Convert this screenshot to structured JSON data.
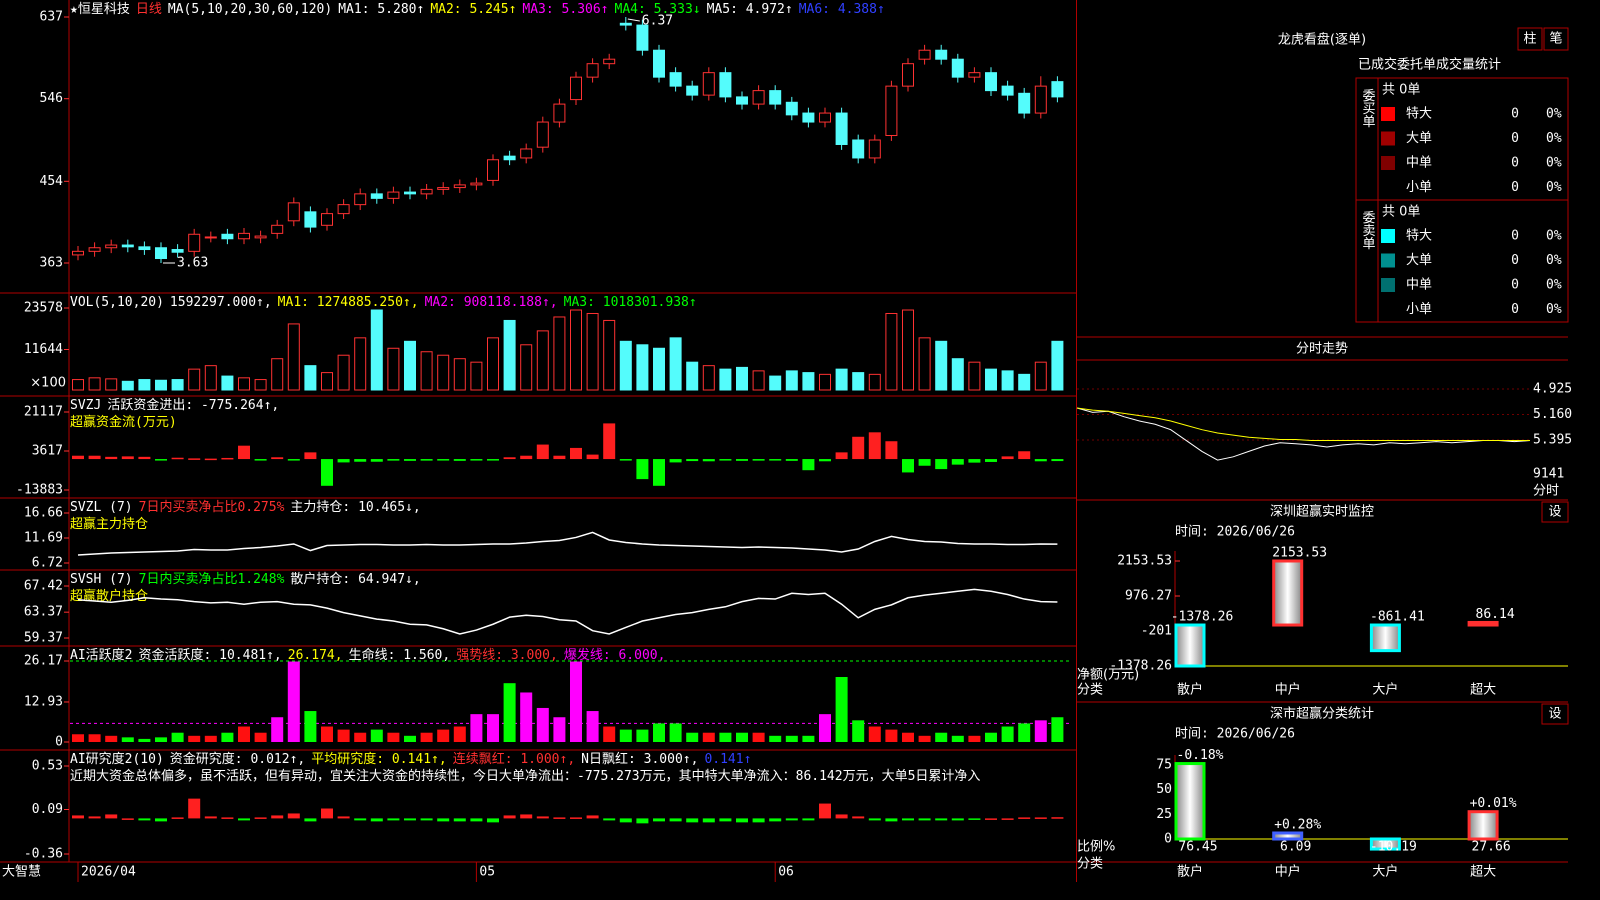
{
  "stock": {
    "header": [
      [
        {
          "text": "★恒星科技",
          "color": "#ffffff"
        },
        {
          "text": "日线",
          "color": "#ff3030"
        },
        {
          "text": "MA(5,10,20,30,60,120)",
          "color": "#ffffff"
        },
        {
          "text": "MA1: 5.280↑",
          "color": "#ffffff"
        },
        {
          "text": "MA2: 5.245↑",
          "color": "#ffff00"
        },
        {
          "text": "MA3: 5.306↑",
          "color": "#ff00ff"
        },
        {
          "text": "MA4: 5.333↓",
          "color": "#00ff00"
        },
        {
          "text": "MA5: 4.972↑",
          "color": "#ffffff"
        },
        {
          "text": "MA6: 4.388↑",
          "color": "#3040ff"
        }
      ]
    ],
    "brand": "大智慧"
  },
  "order_panel": {
    "title": "龙虎看盘(逐单)",
    "buttons": [
      "柱",
      "笔"
    ],
    "heading": "已成交委托单成交量统计",
    "groups": [
      {
        "label": "委买单",
        "total": "共 0单",
        "rows": [
          {
            "name": "特大",
            "count": 0,
            "pct": "0%",
            "color": "#ff0000"
          },
          {
            "name": "大单",
            "count": 0,
            "pct": "0%",
            "color": "#a00000"
          },
          {
            "name": "中单",
            "count": 0,
            "pct": "0%",
            "color": "#800000"
          },
          {
            "name": "小单",
            "count": 0,
            "pct": "0%"
          }
        ]
      },
      {
        "label": "委卖单",
        "total": "共 0单",
        "rows": [
          {
            "name": "特大",
            "count": 0,
            "pct": "0%",
            "color": "#00ffff"
          },
          {
            "name": "大单",
            "count": 0,
            "pct": "0%",
            "color": "#009090"
          },
          {
            "name": "中单",
            "count": 0,
            "pct": "0%",
            "color": "#007070"
          },
          {
            "name": "小单",
            "count": 0,
            "pct": "0%"
          }
        ]
      }
    ]
  },
  "chart_data": [
    {
      "type": "candlestick",
      "header": "stock",
      "up_color": "#ff3232",
      "down_color": "#54fcfc",
      "ylim": [
        363,
        637
      ],
      "yticks": [
        363,
        454,
        546,
        637
      ],
      "high_note": "6.37",
      "low_note": "3.63",
      "xticks": [
        {
          "value": 0,
          "label": "2026/04"
        },
        {
          "value": 24,
          "label": "05"
        },
        {
          "value": 42,
          "label": "06"
        }
      ],
      "open": [
        372,
        376,
        380,
        383,
        381,
        380,
        378,
        376,
        392,
        395,
        390,
        391,
        396,
        410,
        420,
        405,
        418,
        428,
        440,
        435,
        442,
        440,
        445,
        447,
        450,
        455,
        482,
        480,
        492,
        520,
        545,
        570,
        585,
        630,
        628,
        600,
        575,
        560,
        550,
        575,
        548,
        540,
        555,
        542,
        530,
        520,
        530,
        500,
        480,
        505,
        560,
        590,
        600,
        590,
        570,
        575,
        560,
        552,
        530,
        565
      ],
      "high": [
        382,
        386,
        389,
        389,
        387,
        386,
        384,
        401,
        398,
        401,
        402,
        399,
        411,
        436,
        426,
        424,
        434,
        446,
        446,
        448,
        448,
        451,
        453,
        456,
        458,
        484,
        488,
        496,
        526,
        546,
        576,
        591,
        596,
        637,
        634,
        606,
        581,
        566,
        581,
        581,
        554,
        561,
        561,
        548,
        536,
        536,
        536,
        506,
        506,
        566,
        591,
        606,
        606,
        596,
        581,
        581,
        566,
        558,
        571,
        571
      ],
      "low": [
        366,
        370,
        374,
        375,
        372,
        363,
        369,
        370,
        386,
        384,
        384,
        385,
        390,
        404,
        397,
        399,
        412,
        422,
        429,
        429,
        434,
        434,
        439,
        441,
        444,
        449,
        472,
        474,
        486,
        514,
        539,
        564,
        579,
        622,
        594,
        564,
        554,
        544,
        544,
        542,
        534,
        534,
        534,
        522,
        514,
        514,
        489,
        474,
        474,
        499,
        554,
        584,
        584,
        564,
        564,
        549,
        544,
        524,
        524,
        542
      ],
      "close": [
        376,
        380,
        383,
        381,
        378,
        368,
        375,
        395,
        392,
        390,
        396,
        393,
        405,
        430,
        403,
        418,
        428,
        440,
        435,
        442,
        440,
        445,
        447,
        450,
        452,
        478,
        478,
        490,
        520,
        540,
        570,
        585,
        590,
        628,
        600,
        570,
        560,
        550,
        575,
        548,
        540,
        555,
        540,
        528,
        520,
        530,
        495,
        480,
        500,
        560,
        585,
        600,
        590,
        570,
        575,
        555,
        550,
        530,
        560,
        548
      ]
    },
    {
      "type": "volume",
      "header": [
        [
          {
            "text": "VOL(5,10,20)",
            "color": "#ffffff"
          },
          {
            "text": "1592297.000↑,",
            "color": "#ffffff"
          },
          {
            "text": "MA1: 1274885.250↑,",
            "color": "#ffff00"
          },
          {
            "text": "MA2: 908118.188↑,",
            "color": "#ff00ff"
          },
          {
            "text": "MA3: 1018301.938↑",
            "color": "#00ff00"
          }
        ]
      ],
      "unit_label": "×100",
      "ylim": [
        0,
        23578
      ],
      "yticks": [
        11644,
        23578
      ],
      "values": [
        3000,
        3500,
        3200,
        2500,
        3000,
        2800,
        3000,
        6000,
        7000,
        4000,
        3500,
        3000,
        9000,
        19000,
        7000,
        5000,
        10000,
        15000,
        23000,
        12000,
        14000,
        11000,
        10000,
        9000,
        8000,
        15000,
        20000,
        13000,
        17000,
        21000,
        23000,
        22000,
        20000,
        14000,
        13000,
        12000,
        15000,
        8000,
        7000,
        6000,
        6500,
        5500,
        4000,
        5500,
        5000,
        4500,
        6000,
        5000,
        4500,
        22000,
        23000,
        15000,
        14000,
        9000,
        8000,
        6000,
        5500,
        4500,
        8000,
        14000
      ]
    },
    {
      "type": "bar",
      "header": [
        [
          {
            "text": "SVZJ",
            "color": "#ffffff"
          },
          {
            "text": "活跃资金进出: -775.264↑,",
            "color": "#ffffff"
          }
        ],
        [
          {
            "text": "超赢资金流(万元)",
            "color": "#ffff00"
          }
        ]
      ],
      "colors": {
        "pos": "#ff2020",
        "neg": "#00ff00"
      },
      "ylim": [
        -13883,
        21117
      ],
      "yticks": [
        -13883,
        3617,
        21117
      ],
      "values": [
        1500,
        1500,
        1000,
        1200,
        1000,
        -300,
        600,
        300,
        200,
        500,
        6000,
        -500,
        800,
        -600,
        3000,
        -12000,
        -1500,
        -1200,
        -1200,
        -700,
        -800,
        -700,
        -500,
        -800,
        -500,
        -600,
        800,
        1500,
        6500,
        1500,
        5000,
        2000,
        16000,
        -300,
        -9000,
        -12000,
        -1500,
        -900,
        -1000,
        -600,
        -800,
        -700,
        -300,
        -800,
        -5000,
        -1000,
        3000,
        10000,
        12000,
        8000,
        -6000,
        -3000,
        -4500,
        -2500,
        -1600,
        -1300,
        1200,
        3500,
        -1000,
        -900
      ]
    },
    {
      "type": "line",
      "header": [
        [
          {
            "text": "SVZL (7)",
            "color": "#ffffff"
          },
          {
            "text": "7日内买卖净占比0.275%",
            "color": "#ff3030"
          },
          {
            "text": "主力持仓: 10.465↓,",
            "color": "#ffffff"
          }
        ],
        [
          {
            "text": "超赢主力持仓",
            "color": "#ffff00"
          }
        ]
      ],
      "ylim": [
        6.72,
        16.66
      ],
      "yticks": [
        6.72,
        11.69,
        16.66
      ],
      "series": [
        {
          "color": "#ffffff",
          "values": [
            8.3,
            8.5,
            8.7,
            8.8,
            8.9,
            9.0,
            9.1,
            9.4,
            9.3,
            9.3,
            9.6,
            9.8,
            10.1,
            10.5,
            9.2,
            10.2,
            10.3,
            10.4,
            10.4,
            10.3,
            10.3,
            10.4,
            10.3,
            10.3,
            10.4,
            10.5,
            10.5,
            10.7,
            11.0,
            11.2,
            11.8,
            12.8,
            11.3,
            10.8,
            10.5,
            10.3,
            10.2,
            10.1,
            10.0,
            9.9,
            9.8,
            9.9,
            9.8,
            9.7,
            9.5,
            9.3,
            8.9,
            9.5,
            11.0,
            12.0,
            11.4,
            11.0,
            10.9,
            10.6,
            10.5,
            10.5,
            10.4,
            10.4,
            10.5,
            10.465
          ]
        }
      ]
    },
    {
      "type": "line",
      "header": [
        [
          {
            "text": "SVSH (7)",
            "color": "#ffffff"
          },
          {
            "text": "7日内买卖净占比1.248%",
            "color": "#00ff00"
          },
          {
            "text": "散户持仓: 64.947↓,",
            "color": "#ffffff"
          }
        ],
        [
          {
            "text": "超赢散户持仓",
            "color": "#ffff00"
          }
        ]
      ],
      "ylim": [
        59.37,
        67.42
      ],
      "yticks": [
        59.37,
        63.37,
        67.42
      ],
      "series": [
        {
          "color": "#ffffff",
          "values": [
            65.3,
            65.1,
            64.9,
            65.2,
            65.6,
            65.4,
            65.3,
            65.0,
            64.8,
            64.9,
            64.6,
            64.9,
            65.0,
            64.6,
            64.5,
            64.0,
            63.3,
            62.8,
            62.3,
            62.0,
            61.5,
            61.4,
            60.8,
            60.0,
            60.6,
            61.5,
            62.6,
            62.9,
            62.7,
            62.2,
            62.0,
            60.5,
            60.0,
            61.0,
            62.0,
            62.5,
            63.0,
            63.3,
            63.8,
            64.2,
            65.0,
            65.5,
            65.4,
            66.3,
            66.1,
            66.3,
            64.6,
            62.5,
            63.8,
            64.5,
            65.6,
            66.0,
            66.3,
            66.6,
            66.9,
            66.6,
            66.1,
            65.4,
            65.0,
            64.947
          ]
        }
      ]
    },
    {
      "type": "activity",
      "header": [
        [
          {
            "text": "AI活跃度2",
            "color": "#ffffff"
          },
          {
            "text": "资金活跃度: 10.481↑,",
            "color": "#ffffff"
          },
          {
            "text": "26.174,",
            "color": "#ffff00"
          },
          {
            "text": "生命线: 1.560,",
            "color": "#ffffff"
          },
          {
            "text": "强势线: 3.000,",
            "color": "#ff3030"
          },
          {
            "text": "爆发线: 6.000,",
            "color": "#ff00ff"
          }
        ]
      ],
      "burst_line": 6,
      "colors": {
        "up": "#ff1010",
        "burst": "#ff00ff",
        "down": "#00ff00"
      },
      "ylim": [
        0,
        26.17
      ],
      "yticks": [
        0,
        12.93,
        26.17
      ],
      "values": [
        2.5,
        2.5,
        2,
        1.5,
        1,
        1.5,
        3,
        2,
        2,
        3,
        5,
        3,
        8,
        26,
        10,
        5,
        4,
        3,
        4,
        3,
        2,
        3,
        4,
        5,
        9,
        9,
        19,
        16,
        11,
        8,
        26,
        10,
        5,
        4,
        4,
        6,
        6,
        3,
        3,
        3,
        3,
        3,
        2,
        2,
        2,
        9,
        21,
        7,
        5,
        4,
        3,
        2,
        3,
        2,
        2,
        3,
        5,
        6,
        7,
        8
      ]
    },
    {
      "type": "bar",
      "header": [
        [
          {
            "text": "AI研究度2(10)",
            "color": "#ffffff"
          },
          {
            "text": "资金研究度: 0.012↑,",
            "color": "#ffffff"
          },
          {
            "text": "平均研究度: 0.141↑,",
            "color": "#ffff00"
          },
          {
            "text": "连续飘红: 1.000↑,",
            "color": "#ff3030"
          },
          {
            "text": "N日飘红: 3.000↑,",
            "color": "#ffffff"
          },
          {
            "text": "0.141↑",
            "color": "#3040ff"
          }
        ],
        [
          {
            "text": "近期大资金总体偏多，虽不活跃，但有异动，宜关注大资金的持续性，今日大单净流出：-775.273万元，其中特大单净流入：86.142万元，大单5日累计净入",
            "color": "#ffffff"
          }
        ]
      ],
      "colors": {
        "pos": "#ff2020",
        "neg": "#00ff00"
      },
      "ylim": [
        -0.36,
        0.53
      ],
      "yticks": [
        -0.36,
        0.09,
        0.53
      ],
      "values": [
        0.03,
        0.02,
        0.04,
        0,
        -0.02,
        -0.03,
        0.01,
        0.2,
        0.02,
        0.01,
        -0.02,
        0.01,
        0.03,
        0.05,
        -0.03,
        0.1,
        0.02,
        -0.02,
        -0.03,
        -0.02,
        -0.02,
        -0.02,
        -0.03,
        -0.03,
        -0.03,
        -0.04,
        0.03,
        0.04,
        0.02,
        0.01,
        0.01,
        0.03,
        -0.02,
        -0.04,
        -0.05,
        -0.03,
        -0.03,
        -0.04,
        -0.04,
        -0.03,
        -0.04,
        -0.04,
        -0.03,
        -0.02,
        -0.02,
        0.15,
        0.04,
        0.02,
        -0.02,
        -0.03,
        -0.02,
        -0.02,
        -0.02,
        -0.02,
        -0.01,
        0,
        0,
        0.01,
        0.01,
        0.012
      ]
    },
    {
      "type": "line",
      "title": "分时走势",
      "volume_label": "9141",
      "side_label": "分时",
      "ylim": [
        4.925,
        5.395
      ],
      "yticks": [
        {
          "value": 4.925,
          "label": "4.925",
          "color": "#00ffff"
        },
        {
          "value": 5.16,
          "label": "5.160",
          "color": "#ffffff"
        },
        {
          "value": 5.395,
          "label": "5.395",
          "color": "#ff3030"
        }
      ],
      "series": [
        {
          "color": "#ffffff",
          "values": [
            5.1,
            5.14,
            5.13,
            5.18,
            5.22,
            5.25,
            5.3,
            5.4,
            5.5,
            5.58,
            5.55,
            5.5,
            5.45,
            5.42,
            5.43,
            5.44,
            5.46,
            5.44,
            5.43,
            5.44,
            5.42,
            5.43,
            5.42,
            5.41,
            5.42,
            5.41,
            5.4,
            5.4,
            5.41,
            5.4
          ]
        },
        {
          "color": "#ffff00",
          "values": [
            5.1,
            5.12,
            5.13,
            5.15,
            5.17,
            5.19,
            5.22,
            5.26,
            5.3,
            5.33,
            5.35,
            5.37,
            5.38,
            5.39,
            5.39,
            5.4,
            5.4,
            5.4,
            5.4,
            5.4,
            5.4,
            5.4,
            5.4,
            5.4,
            5.4,
            5.4,
            5.4,
            5.4,
            5.4,
            5.4
          ]
        }
      ]
    },
    {
      "type": "bar",
      "title": "深圳超赢实时监控",
      "button": "设",
      "time": "时间: 2026/06/26",
      "ylabel": "净额(万元)",
      "xlabel": "分类",
      "categories": [
        "散户",
        "中户",
        "大户",
        "超大"
      ],
      "colors": {
        "pos": "#ff3030",
        "neg": "#00ffff"
      },
      "ylim": [
        -1378.26,
        2153.53
      ],
      "yticks": [
        -1378.26,
        -201,
        976.27,
        2153.53
      ],
      "values": [
        -1378.26,
        2153.53,
        -861.41,
        86.14
      ]
    },
    {
      "type": "bar",
      "title": "深市超赢分类统计",
      "button": "设",
      "time": "时间: 2026/06/26",
      "ylabel": "比例%",
      "xlabel": "分类",
      "categories": [
        "散户",
        "中户",
        "大户",
        "超大"
      ],
      "bar_colors": [
        "#00ff00",
        "#4060ff",
        "#00ffff",
        "#ff3030"
      ],
      "ylim": [
        0,
        75
      ],
      "yticks": [
        0,
        25,
        50,
        75
      ],
      "values": [
        76.45,
        6.09,
        -10.19,
        27.66
      ],
      "change_labels": [
        "-0.18%",
        "+0.28%",
        null,
        "+0.01%"
      ]
    }
  ]
}
